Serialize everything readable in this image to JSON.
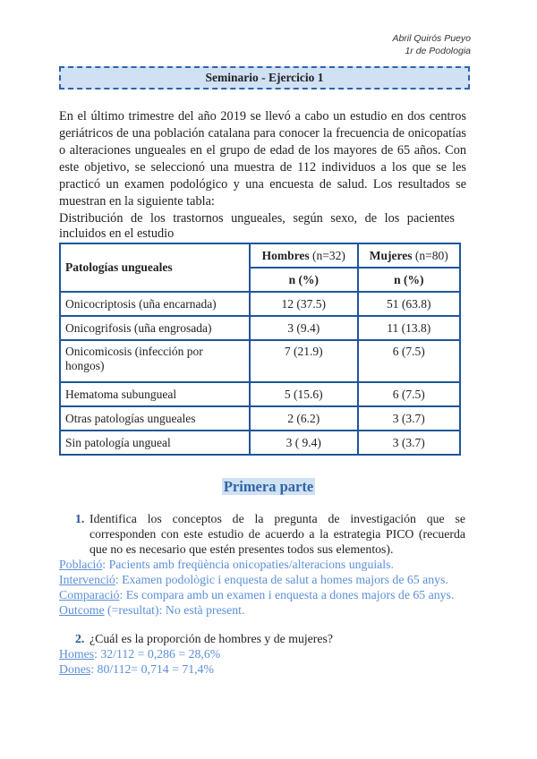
{
  "header": {
    "author": "Abril Quirós Pueyo",
    "course": "1r de Podologia"
  },
  "title": "Seminario - Ejercicio 1",
  "intro": "En el último trimestre del año 2019 se llevó a cabo un estudio en dos centros geriátricos de una población catalana para conocer la frecuencia de onicopatías o alteraciones ungueales en el grupo de edad de los mayores de 65 años. Con este objetivo, se seleccionó una muestra de 112 individuos a los que se les practicó un examen podológico y una encuesta de salud. Los resultados se muestran en la siguiente tabla:",
  "table": {
    "caption": "Distribución de los trastornos ungueales, según sexo, de los pacientes incluidos en el estudio",
    "header": {
      "col1": "Patologías ungueales",
      "men": "Hombres",
      "men_n": "(n=32)",
      "women": "Mujeres",
      "women_n": "(n=80)",
      "sub": "n (%)"
    },
    "rows": [
      {
        "label": "Onicocriptosis (uña encarnada)",
        "men": "12 (37.5)",
        "women": "51 (63.8)"
      },
      {
        "label": "Onicogrifosis (uña engrosada)",
        "men": "3 (9.4)",
        "women": "11 (13.8)"
      },
      {
        "label": "Onicomicosis (infección por hongos)",
        "men": "7 (21.9)",
        "women": "6 (7.5)"
      },
      {
        "label": "Hematoma subungueal",
        "men": "5 (15.6)",
        "women": "6 (7.5)"
      },
      {
        "label": "Otras patologías ungueales",
        "men": "2 (6.2)",
        "women": "3 (3.7)"
      },
      {
        "label": "Sin patología ungueal",
        "men": "3 ( 9.4)",
        "women": "3 (3.7)"
      }
    ]
  },
  "section": "Primera parte",
  "q1": {
    "num": "1.",
    "text": "Identifica los conceptos de la pregunta de investigación que se corresponden con este estudio de acuerdo a la estrategia PICO (recuerda que no es necesario que estén presentes todos sus elementos)."
  },
  "a1": [
    {
      "key": "Població",
      "text": ": Pacients amb freqüència onicopaties/alteracions unguials."
    },
    {
      "key": "Intervenció",
      "text": ": Examen podològic i enquesta de salut a homes majors de 65 anys."
    },
    {
      "key": "Comparació",
      "text": ": Es compara amb un examen i enquesta a dones majors de 65 anys."
    },
    {
      "key": "Outcome",
      "text": " (=resultat): No està present."
    }
  ],
  "q2": {
    "num": "2.",
    "text": "¿Cuál es la proporción de hombres y de mujeres?"
  },
  "a2": [
    {
      "key": "Homes",
      "text": ": 32/112 = 0,286 = 28,6%"
    },
    {
      "key": "Dones",
      "text": ": 80/112= 0,714 = 71,4%"
    }
  ],
  "colors": {
    "accent": "#2e64a6",
    "highlight": "#d0e1f4",
    "answer": "#5b8fd9"
  }
}
